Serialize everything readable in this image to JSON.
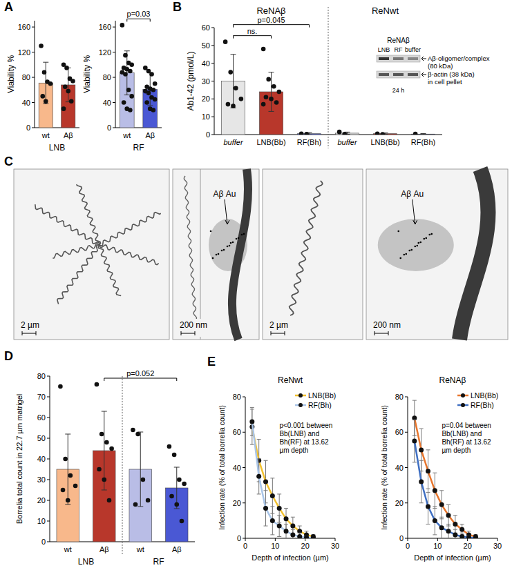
{
  "chart_data": [
    {
      "type": "bar",
      "panel": "A",
      "y_label": "Viability %",
      "categories": [
        "wt",
        "Aβ"
      ],
      "groups": [
        "LNB"
      ],
      "values": [
        71,
        68
      ],
      "errors": [
        33,
        27
      ],
      "points": [
        [
          130,
          88,
          73,
          70,
          50,
          42
        ],
        [
          100,
          95,
          78,
          74,
          65,
          58,
          42,
          30
        ]
      ],
      "colors": [
        "#f8b88b",
        "#b8372b"
      ],
      "ylim": [
        0,
        170
      ],
      "yticks": [
        0,
        40,
        80,
        120,
        160
      ]
    },
    {
      "type": "bar",
      "y_label": "Viability %",
      "categories": [
        "wt",
        "Aβ"
      ],
      "groups": [
        "RF"
      ],
      "values": [
        87,
        61
      ],
      "errors": [
        35,
        26
      ],
      "points": [
        [
          163,
          115,
          103,
          100,
          95,
          93,
          90,
          88,
          85,
          60,
          50,
          40,
          30,
          28
        ],
        [
          95,
          90,
          85,
          70,
          65,
          62,
          60,
          58,
          55,
          48,
          45,
          40,
          30,
          28
        ]
      ],
      "colors": [
        "#b9bde6",
        "#4a58d4"
      ],
      "ylim": [
        0,
        170
      ],
      "yticks": [
        0,
        40,
        80,
        120,
        160
      ],
      "annotations": [
        {
          "text": "p=0.03",
          "from": 0,
          "to": 1
        }
      ]
    },
    {
      "type": "bar",
      "panel": "B",
      "y_label": "Ab1-42 (pmol/L)",
      "categories": [
        "buffer",
        "LNB(Bb)",
        "RF(Bh)",
        "buffer",
        "LNB(Bb)",
        "RF(Bh)"
      ],
      "group_titles": [
        "ReNAβ",
        "ReNwt"
      ],
      "values": [
        30,
        24,
        0.5,
        0.8,
        0.5,
        0.3
      ],
      "errors": [
        15,
        11,
        0.6,
        0.6,
        0.4,
        0.3
      ],
      "points": [
        [
          52,
          35,
          26,
          20,
          17,
          16
        ],
        [
          48,
          31,
          27,
          24,
          21,
          20,
          18,
          17
        ],
        [
          0.5,
          0.3
        ],
        [
          1.5,
          0.3
        ],
        [
          0.5,
          0.2
        ],
        [
          0.4
        ]
      ],
      "colors": [
        "#e6e6e6",
        "#b8372b",
        "#5a68d8",
        "#e6e6e6",
        "#b8372b",
        "#5a68d8"
      ],
      "ylim": [
        0,
        60
      ],
      "yticks": [
        0,
        10,
        20,
        30,
        40,
        50,
        60
      ],
      "annotations": [
        {
          "text": "ns.",
          "from": 0,
          "to": 1
        },
        {
          "text": "p=0.045",
          "from": 0,
          "to": 2
        }
      ],
      "inset": {
        "title": "ReNAβ",
        "lanes": [
          "LNB",
          "RF",
          "buffer"
        ],
        "time": "24 h",
        "bands": [
          {
            "lines": [
              "Aβ-oligomer/complex",
              "(80 kDa)"
            ]
          },
          {
            "lines": [
              "β-actin (38 kDa)",
              "in cell pellet"
            ]
          }
        ]
      }
    },
    {
      "type": "bar",
      "panel": "D",
      "y_label": "Borrelia total count in 22.7 µm matrigel",
      "categories": [
        "wt",
        "Aβ",
        "wt",
        "Aβ"
      ],
      "groups": [
        "LNB",
        "RF"
      ],
      "values": [
        35,
        44,
        35,
        26
      ],
      "errors": [
        17,
        19,
        18,
        10
      ],
      "points": [
        [
          75,
          40,
          32,
          27,
          25,
          20
        ],
        [
          76,
          52,
          48,
          45,
          35,
          30,
          20
        ],
        [
          54,
          52,
          30,
          20,
          18
        ],
        [
          46,
          42,
          30,
          28,
          22,
          18,
          10
        ]
      ],
      "colors": [
        "#f8b88b",
        "#b8372b",
        "#b9bde6",
        "#4a58d4"
      ],
      "ylim": [
        0,
        80
      ],
      "yticks": [
        0,
        10,
        20,
        30,
        40,
        50,
        60,
        70,
        80
      ],
      "annotations": [
        {
          "text": "p=0.052",
          "from": 1,
          "to": 3
        }
      ]
    },
    {
      "type": "line",
      "panel": "E",
      "title": "ReNwt",
      "x_label": "Depth of infection (µm)",
      "y_label": "Infection rate (% of total borrelia count)",
      "x": [
        2.27,
        4.54,
        6.81,
        9.08,
        11.35,
        13.62,
        15.89,
        18.16,
        20.43,
        22.7
      ],
      "series": [
        {
          "name": "LNB(Bb)",
          "color": "#f2c12e",
          "values": [
            63,
            44,
            32,
            24,
            17,
            11,
            7,
            4,
            2,
            1
          ],
          "errors": [
            10,
            12,
            12,
            10,
            8,
            6,
            5,
            3,
            2,
            1
          ]
        },
        {
          "name": "RF(Bh)",
          "color": "#a9c5e8",
          "values": [
            66,
            35,
            17,
            10,
            7,
            4,
            2,
            1,
            0.5,
            0.3
          ],
          "errors": [
            8,
            10,
            10,
            8,
            6,
            4,
            3,
            2,
            1,
            0.5
          ]
        }
      ],
      "marker": "circle",
      "legend": "upper right",
      "xlim": [
        0,
        30
      ],
      "xticks": [
        0,
        10,
        20,
        30
      ],
      "ylim": [
        0,
        80
      ],
      "yticks": [
        0,
        20,
        40,
        60,
        80
      ],
      "annotations": [
        {
          "text": "p<0.001 between Bb(LNB) and Bh(RF) at 13.62 µm depth"
        }
      ]
    },
    {
      "type": "line",
      "title": "ReNAβ",
      "x_label": "Depth of infection (µm)",
      "y_label": "Infection rate (% of total borrelia count)",
      "x": [
        2.27,
        4.54,
        6.81,
        9.08,
        11.35,
        13.62,
        15.89,
        18.16,
        20.43,
        22.7
      ],
      "series": [
        {
          "name": "LNB(Bb)",
          "color": "#e8762d",
          "values": [
            68,
            50,
            38,
            27,
            19,
            13,
            8,
            5,
            2,
            1
          ],
          "errors": [
            10,
            12,
            12,
            10,
            8,
            6,
            5,
            3,
            2,
            1
          ]
        },
        {
          "name": "RF(Bh)",
          "color": "#3f6fc2",
          "values": [
            55,
            32,
            18,
            10,
            6,
            4,
            2,
            1,
            0.5,
            0.2
          ],
          "errors": [
            12,
            12,
            10,
            8,
            6,
            4,
            3,
            2,
            1,
            0.5
          ]
        }
      ],
      "marker": "circle",
      "legend": "upper right",
      "xlim": [
        0,
        30
      ],
      "xticks": [
        0,
        10,
        20,
        30
      ],
      "ylim": [
        0,
        80
      ],
      "yticks": [
        0,
        20,
        40,
        60,
        80
      ],
      "annotations": [
        {
          "text": "p=0.04 between Bb(LNB) and Bh(RF) at 13.62 µm depth"
        }
      ]
    }
  ],
  "images": {
    "panel": "C",
    "items": [
      {
        "scale_bar": "2 µm"
      },
      {
        "scale_bar": "200 nm",
        "label": "Aβ Au"
      },
      {
        "scale_bar": "2 µm"
      },
      {
        "scale_bar": "200 nm",
        "label": "Aβ Au"
      }
    ]
  }
}
